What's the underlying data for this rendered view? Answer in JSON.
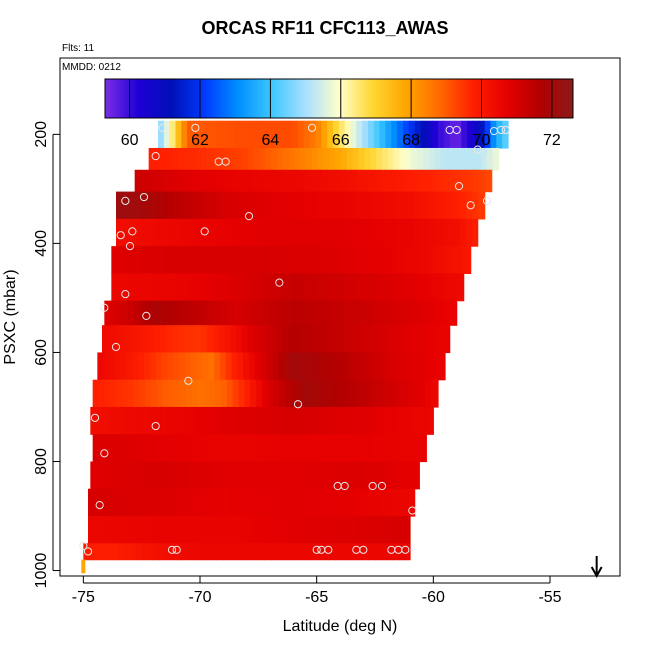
{
  "chart_data": {
    "type": "heatmap",
    "title": "ORCAS RF11 CFC113_AWAS",
    "flights_note": "Flts: 11",
    "date_note": "MMDD: 0212",
    "xlabel": "Latitude (deg N)",
    "ylabel": "PSXC (mbar)",
    "xlim": [
      -76,
      -52
    ],
    "ylim": [
      1010,
      60
    ],
    "y_reversed": true,
    "x_ticks": [
      -75,
      -70,
      -65,
      -60,
      -55
    ],
    "x_tick_labels": [
      "-75",
      "-70",
      "-65",
      "-60",
      "-55"
    ],
    "y_ticks": [
      200,
      400,
      600,
      800,
      1000
    ],
    "y_tick_labels": [
      "200",
      "400",
      "600",
      "800",
      "1000"
    ],
    "colorbar": {
      "min": 59.3,
      "max": 72.6,
      "ticks": [
        60,
        62,
        64,
        66,
        68,
        70,
        72
      ],
      "tick_labels": [
        "60",
        "62",
        "64",
        "66",
        "68",
        "70",
        "72"
      ]
    },
    "pressure_bands": [
      {
        "p_top": 175,
        "p_bot": 225,
        "lat_min": -71.8,
        "lat_max": -56.8,
        "profile": [
          [
            -71.8,
            64.5
          ],
          [
            -71.3,
            66.0
          ],
          [
            -70.5,
            69.0
          ],
          [
            -68,
            69.2
          ],
          [
            -66,
            69.2
          ],
          [
            -65,
            68.5
          ],
          [
            -64.2,
            67.0
          ],
          [
            -63.3,
            65.5
          ],
          [
            -62.3,
            64.0
          ],
          [
            -61,
            62.0
          ],
          [
            -59.7,
            60.0
          ],
          [
            -59,
            59.5
          ],
          [
            -58,
            61.0
          ],
          [
            -57.3,
            63.5
          ],
          [
            -56.8,
            64.5
          ]
        ]
      },
      {
        "p_top": 225,
        "p_bot": 265,
        "lat_min": -72.2,
        "lat_max": -57.2,
        "profile": [
          [
            -72.2,
            69.8
          ],
          [
            -70,
            69.6
          ],
          [
            -68,
            69.3
          ],
          [
            -66,
            68.6
          ],
          [
            -64,
            67.8
          ],
          [
            -62.5,
            66.8
          ],
          [
            -61,
            65.8
          ],
          [
            -59.5,
            65.2
          ],
          [
            -58,
            65.2
          ],
          [
            -57.2,
            65.8
          ]
        ]
      },
      {
        "p_top": 265,
        "p_bot": 305,
        "lat_min": -72.8,
        "lat_max": -57.5,
        "profile": [
          [
            -72.8,
            71.2
          ],
          [
            -70.5,
            70.8
          ],
          [
            -68,
            70.6
          ],
          [
            -66,
            70.5
          ],
          [
            -64,
            70.3
          ],
          [
            -62,
            70.0
          ],
          [
            -60,
            69.7
          ],
          [
            -58,
            69.4
          ],
          [
            -57.5,
            69.2
          ]
        ]
      },
      {
        "p_top": 305,
        "p_bot": 355,
        "lat_min": -73.6,
        "lat_max": -57.8,
        "profile": [
          [
            -73.6,
            72.2
          ],
          [
            -72.5,
            72.0
          ],
          [
            -71,
            71.5
          ],
          [
            -69,
            71.0
          ],
          [
            -67,
            70.8
          ],
          [
            -64,
            70.6
          ],
          [
            -61,
            70.3
          ],
          [
            -59,
            69.8
          ],
          [
            -57.8,
            69.4
          ]
        ]
      },
      {
        "p_top": 355,
        "p_bot": 405,
        "lat_min": -73.6,
        "lat_max": -58.1,
        "profile": [
          [
            -73.6,
            70.3
          ],
          [
            -70,
            70.6
          ],
          [
            -67,
            70.8
          ],
          [
            -64,
            70.8
          ],
          [
            -61,
            70.6
          ],
          [
            -59,
            70.3
          ],
          [
            -58.1,
            69.8
          ]
        ]
      },
      {
        "p_top": 405,
        "p_bot": 455,
        "lat_min": -73.8,
        "lat_max": -58.4,
        "profile": [
          [
            -73.8,
            70.8
          ],
          [
            -71,
            71.0
          ],
          [
            -68,
            71.0
          ],
          [
            -65,
            70.9
          ],
          [
            -62,
            70.7
          ],
          [
            -60,
            70.4
          ],
          [
            -58.4,
            70.0
          ]
        ]
      },
      {
        "p_top": 455,
        "p_bot": 505,
        "lat_min": -73.8,
        "lat_max": -58.7,
        "profile": [
          [
            -73.8,
            70.5
          ],
          [
            -71,
            70.6
          ],
          [
            -69,
            70.8
          ],
          [
            -66,
            71.3
          ],
          [
            -63,
            71.0
          ],
          [
            -61,
            70.8
          ],
          [
            -58.7,
            70.4
          ]
        ]
      },
      {
        "p_top": 505,
        "p_bot": 550,
        "lat_min": -74.1,
        "lat_max": -59.0,
        "profile": [
          [
            -74.1,
            70.8
          ],
          [
            -73,
            71.2
          ],
          [
            -72,
            71.8
          ],
          [
            -70.5,
            71.5
          ],
          [
            -68.5,
            71.0
          ],
          [
            -66,
            71.5
          ],
          [
            -63,
            71.2
          ],
          [
            -61,
            70.9
          ],
          [
            -59,
            70.6
          ]
        ]
      },
      {
        "p_top": 550,
        "p_bot": 600,
        "lat_min": -74.2,
        "lat_max": -59.3,
        "profile": [
          [
            -74.2,
            70.4
          ],
          [
            -72.5,
            70.0
          ],
          [
            -71,
            69.6
          ],
          [
            -70,
            69.5
          ],
          [
            -69,
            70.0
          ],
          [
            -67.5,
            71.0
          ],
          [
            -66,
            71.6
          ],
          [
            -64,
            71.3
          ],
          [
            -61,
            70.8
          ],
          [
            -59.3,
            70.6
          ]
        ]
      },
      {
        "p_top": 600,
        "p_bot": 650,
        "lat_min": -74.4,
        "lat_max": -59.5,
        "profile": [
          [
            -74.4,
            70.5
          ],
          [
            -73,
            70.0
          ],
          [
            -71.5,
            69.3
          ],
          [
            -70.5,
            69.0
          ],
          [
            -69.5,
            68.7
          ],
          [
            -68.8,
            69.5
          ],
          [
            -67.5,
            70.8
          ],
          [
            -66,
            72.0
          ],
          [
            -64,
            71.6
          ],
          [
            -62,
            71.0
          ],
          [
            -59.5,
            70.6
          ]
        ]
      },
      {
        "p_top": 650,
        "p_bot": 700,
        "lat_min": -74.6,
        "lat_max": -59.8,
        "profile": [
          [
            -74.6,
            69.8
          ],
          [
            -73,
            69.5
          ],
          [
            -71.5,
            69.0
          ],
          [
            -70,
            68.7
          ],
          [
            -69,
            68.9
          ],
          [
            -68,
            69.8
          ],
          [
            -67,
            71.0
          ],
          [
            -65.5,
            72.0
          ],
          [
            -63,
            71.4
          ],
          [
            -61,
            70.9
          ],
          [
            -59.8,
            70.5
          ]
        ]
      },
      {
        "p_top": 700,
        "p_bot": 750,
        "lat_min": -74.7,
        "lat_max": -60.0,
        "profile": [
          [
            -74.7,
            70.3
          ],
          [
            -72,
            70.5
          ],
          [
            -69,
            70.8
          ],
          [
            -66,
            71.0
          ],
          [
            -63,
            70.8
          ],
          [
            -60,
            70.5
          ]
        ]
      },
      {
        "p_top": 750,
        "p_bot": 800,
        "lat_min": -74.6,
        "lat_max": -60.3,
        "profile": [
          [
            -74.6,
            70.9
          ],
          [
            -72,
            70.8
          ],
          [
            -69,
            70.6
          ],
          [
            -66,
            70.7
          ],
          [
            -63,
            70.7
          ],
          [
            -60.3,
            70.6
          ]
        ]
      },
      {
        "p_top": 800,
        "p_bot": 850,
        "lat_min": -74.7,
        "lat_max": -60.6,
        "profile": [
          [
            -74.7,
            70.8
          ],
          [
            -72,
            71.0
          ],
          [
            -69,
            70.8
          ],
          [
            -66,
            70.8
          ],
          [
            -63,
            70.9
          ],
          [
            -60.6,
            70.7
          ]
        ]
      },
      {
        "p_top": 850,
        "p_bot": 900,
        "lat_min": -74.8,
        "lat_max": -60.8,
        "profile": [
          [
            -74.8,
            71.0
          ],
          [
            -72,
            70.9
          ],
          [
            -69,
            70.7
          ],
          [
            -66,
            70.8
          ],
          [
            -63,
            70.7
          ],
          [
            -60.8,
            70.5
          ]
        ]
      },
      {
        "p_top": 900,
        "p_bot": 950,
        "lat_min": -74.8,
        "lat_max": -61.0,
        "profile": [
          [
            -74.8,
            70.5
          ],
          [
            -72,
            70.6
          ],
          [
            -69,
            70.6
          ],
          [
            -66,
            70.8
          ],
          [
            -63,
            70.9
          ],
          [
            -61,
            71.0
          ]
        ]
      },
      {
        "p_top": 950,
        "p_bot": 980,
        "lat_min": -75.0,
        "lat_max": -61.0,
        "profile": [
          [
            -75.0,
            69.9
          ],
          [
            -74,
            69.8
          ],
          [
            -72,
            70.2
          ],
          [
            -70,
            70.5
          ],
          [
            -66,
            70.5
          ],
          [
            -61,
            70.5
          ]
        ]
      }
    ],
    "samples": [
      {
        "lat": -71.6,
        "p": 188
      },
      {
        "lat": -70.2,
        "p": 188
      },
      {
        "lat": -65.2,
        "p": 188
      },
      {
        "lat": -59.3,
        "p": 192
      },
      {
        "lat": -59.0,
        "p": 192
      },
      {
        "lat": -57.4,
        "p": 194
      },
      {
        "lat": -57.1,
        "p": 192
      },
      {
        "lat": -56.9,
        "p": 192
      },
      {
        "lat": -71.9,
        "p": 240
      },
      {
        "lat": -69.2,
        "p": 250
      },
      {
        "lat": -68.9,
        "p": 250
      },
      {
        "lat": -58.1,
        "p": 228
      },
      {
        "lat": -57.6,
        "p": 247
      },
      {
        "lat": -58.9,
        "p": 295
      },
      {
        "lat": -57.7,
        "p": 322
      },
      {
        "lat": -58.4,
        "p": 330
      },
      {
        "lat": -73.2,
        "p": 322
      },
      {
        "lat": -72.4,
        "p": 315
      },
      {
        "lat": -67.9,
        "p": 350
      },
      {
        "lat": -73.4,
        "p": 385
      },
      {
        "lat": -72.9,
        "p": 378
      },
      {
        "lat": -69.8,
        "p": 378
      },
      {
        "lat": -73.0,
        "p": 405
      },
      {
        "lat": -66.6,
        "p": 472
      },
      {
        "lat": -73.2,
        "p": 493
      },
      {
        "lat": -74.1,
        "p": 518
      },
      {
        "lat": -72.3,
        "p": 533
      },
      {
        "lat": -73.6,
        "p": 590
      },
      {
        "lat": -70.5,
        "p": 652
      },
      {
        "lat": -65.8,
        "p": 695
      },
      {
        "lat": -74.5,
        "p": 720
      },
      {
        "lat": -71.9,
        "p": 735
      },
      {
        "lat": -74.1,
        "p": 785
      },
      {
        "lat": -64.1,
        "p": 845
      },
      {
        "lat": -63.8,
        "p": 845
      },
      {
        "lat": -62.6,
        "p": 845
      },
      {
        "lat": -62.2,
        "p": 845
      },
      {
        "lat": -60.9,
        "p": 890
      },
      {
        "lat": -74.3,
        "p": 880
      },
      {
        "lat": -75.0,
        "p": 955
      },
      {
        "lat": -74.8,
        "p": 965
      },
      {
        "lat": -71.2,
        "p": 962
      },
      {
        "lat": -71.0,
        "p": 962
      },
      {
        "lat": -65.0,
        "p": 962
      },
      {
        "lat": -64.8,
        "p": 962
      },
      {
        "lat": -64.5,
        "p": 962
      },
      {
        "lat": -63.3,
        "p": 962
      },
      {
        "lat": -63.0,
        "p": 962
      },
      {
        "lat": -61.8,
        "p": 962
      },
      {
        "lat": -61.5,
        "p": 962
      },
      {
        "lat": -61.2,
        "p": 962
      }
    ],
    "flight_track": [
      {
        "lat": -75.0,
        "p": 980
      },
      {
        "lat": -75.0,
        "p": 1005
      }
    ],
    "arrow_marker": {
      "lat": -53.0
    }
  },
  "colors": {
    "scale": [
      "#7b2ee6",
      "#1f00d6",
      "#0010b8",
      "#003cff",
      "#0090ff",
      "#3ec8ff",
      "#a9dfff",
      "#ffffcc",
      "#ffd733",
      "#ffa500",
      "#ff6a00",
      "#ff2000",
      "#e60000",
      "#b20000",
      "#8b1a1a"
    ],
    "sample_edge": "#e8e8e8",
    "track": "#ffa500"
  }
}
